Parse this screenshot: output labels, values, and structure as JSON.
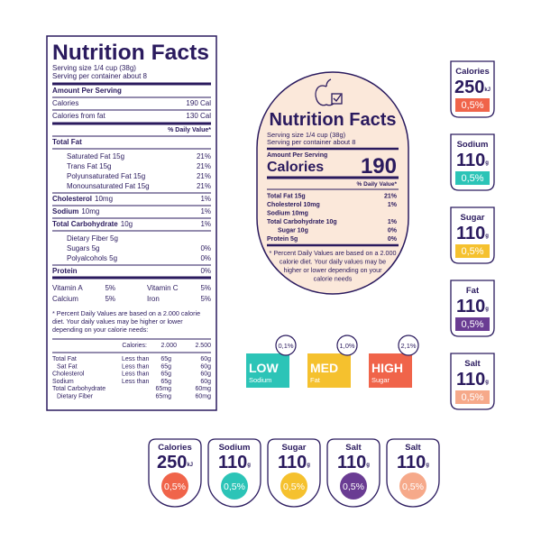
{
  "nutrition_label": {
    "title": "Nutrition Facts",
    "serving_size": "Serving size 1/4 cup (38g)",
    "servings": "Serving per container about 8",
    "amount_per_serving": "Amount Per Serving",
    "calories": {
      "label": "Calories",
      "value": "190 Cal"
    },
    "calories_from_fat": {
      "label": "Calories from fat",
      "value": "130 Cal"
    },
    "daily_value_header": "% Daily Value*",
    "nutrients": [
      {
        "name": "Total Fat",
        "subs": [
          {
            "name": "Saturated Fat 15g",
            "dv": "21%"
          },
          {
            "name": "Trans Fat 15g",
            "dv": "21%"
          },
          {
            "name": "Polyunsaturated Fat 15g",
            "dv": "21%"
          },
          {
            "name": "Monounsaturated Fat 15g",
            "dv": "21%"
          }
        ]
      },
      {
        "name": "Cholesterol",
        "amount": "10mg",
        "dv": "1%"
      },
      {
        "name": "Sodium",
        "amount": "10mg",
        "dv": "1%"
      },
      {
        "name": "Total Carbohydrate",
        "amount": "10g",
        "dv": "1%",
        "subs": [
          {
            "name": "Dietary Fiber 5g"
          },
          {
            "name": "Sugars 5g",
            "dv": "0%"
          },
          {
            "name": "Polyalcohols 5g",
            "dv": "0%"
          }
        ]
      },
      {
        "name": "Protein",
        "dv": "0%"
      }
    ],
    "vitamins": [
      [
        {
          "name": "Vitamin A",
          "dv": "5%"
        },
        {
          "name": "Vitamin C",
          "dv": "5%"
        }
      ],
      [
        {
          "name": "Calcium",
          "dv": "5%"
        },
        {
          "name": "Iron",
          "dv": "5%"
        }
      ]
    ],
    "footnote": [
      "* Percent Daily Values are based on a 2.000 calorie",
      "diet. Your daily values may be higher or lower",
      "depending on your calorie needs:"
    ],
    "reference": {
      "header": [
        "Calories:",
        "2.000",
        "2.500"
      ],
      "rows": [
        {
          "name": "Total Fat",
          "limit": "Less than",
          "v1": "65g",
          "v2": "60g",
          "subs": [
            {
              "name": "Sat Fat",
              "limit": "Less than",
              "v1": "65g",
              "v2": "60g"
            }
          ]
        },
        {
          "name": "Cholesterol",
          "limit": "Less than",
          "v1": "65g",
          "v2": "60g"
        },
        {
          "name": "Sodium",
          "limit": "Less than",
          "v1": "65g",
          "v2": "60g"
        },
        {
          "name": "Total Carbohydrate",
          "v1": "65mg",
          "v2": "60mg",
          "subs": [
            {
              "name": "Dietary Fiber",
              "v1": "65mg",
              "v2": "60mg"
            }
          ]
        }
      ]
    }
  },
  "oval_label": {
    "title": "Nutrition Facts",
    "serving_size": "Serving size 1/4 cup (38g)",
    "servings": "Serving per container about 8",
    "amount_per_serving": "Amount Per Serving",
    "calories": {
      "label": "Calories",
      "value": "190"
    },
    "daily_value_header": "% Daily Value*",
    "rows": [
      {
        "name": "Total Fat 15g",
        "dv": "21%"
      },
      {
        "name": "Cholesterol 10mg",
        "dv": "1%"
      },
      {
        "name": "Sodium 10mg"
      },
      {
        "name": "Total Carbohydrate 10g",
        "dv": "1%",
        "subs": [
          {
            "name": "Sugar 10g",
            "dv": "0%"
          }
        ]
      },
      {
        "name": "Protein 5g",
        "dv": "0%"
      }
    ],
    "footnote": [
      "* Percent Daily Values are based on a 2.000",
      "calorie diet. Your daily values may be",
      "higher or lower depending on your",
      "calorie needs"
    ]
  },
  "side_badges": [
    {
      "name": "Calories",
      "value": "250",
      "unit": "kJ",
      "percent": "0,5%",
      "color": "#f0644a"
    },
    {
      "name": "Sodium",
      "value": "110",
      "unit": "g",
      "percent": "0,5%",
      "color": "#2cc4b7"
    },
    {
      "name": "Sugar",
      "value": "110",
      "unit": "g",
      "percent": "0,5%",
      "color": "#f5c12e"
    },
    {
      "name": "Fat",
      "value": "110",
      "unit": "g",
      "percent": "0,5%",
      "color": "#6a3c93"
    },
    {
      "name": "Salt",
      "value": "110",
      "unit": "g",
      "percent": "0,5%",
      "color": "#f6a98a"
    }
  ],
  "indicators": [
    {
      "percent": "0,1%",
      "level": "LOW",
      "nutrient": "Sodium",
      "color": "#2cc4b7"
    },
    {
      "percent": "1,0%",
      "level": "MED",
      "nutrient": "Fat",
      "color": "#f5c12e"
    },
    {
      "percent": "2,1%",
      "level": "HIGH",
      "nutrient": "Sugar",
      "color": "#f0644a"
    }
  ],
  "bottom_badges": [
    {
      "name": "Calories",
      "value": "250",
      "unit": "kJ",
      "percent": "0,5%",
      "color": "#f0644a"
    },
    {
      "name": "Sodium",
      "value": "110",
      "unit": "g",
      "percent": "0,5%",
      "color": "#2cc4b7"
    },
    {
      "name": "Sugar",
      "value": "110",
      "unit": "g",
      "percent": "0,5%",
      "color": "#f5c12e"
    },
    {
      "name": "Salt",
      "value": "110",
      "unit": "g",
      "percent": "0,5%",
      "color": "#6a3c93"
    },
    {
      "name": "Salt",
      "value": "110",
      "unit": "g",
      "percent": "0,5%",
      "color": "#f6a98a"
    }
  ]
}
